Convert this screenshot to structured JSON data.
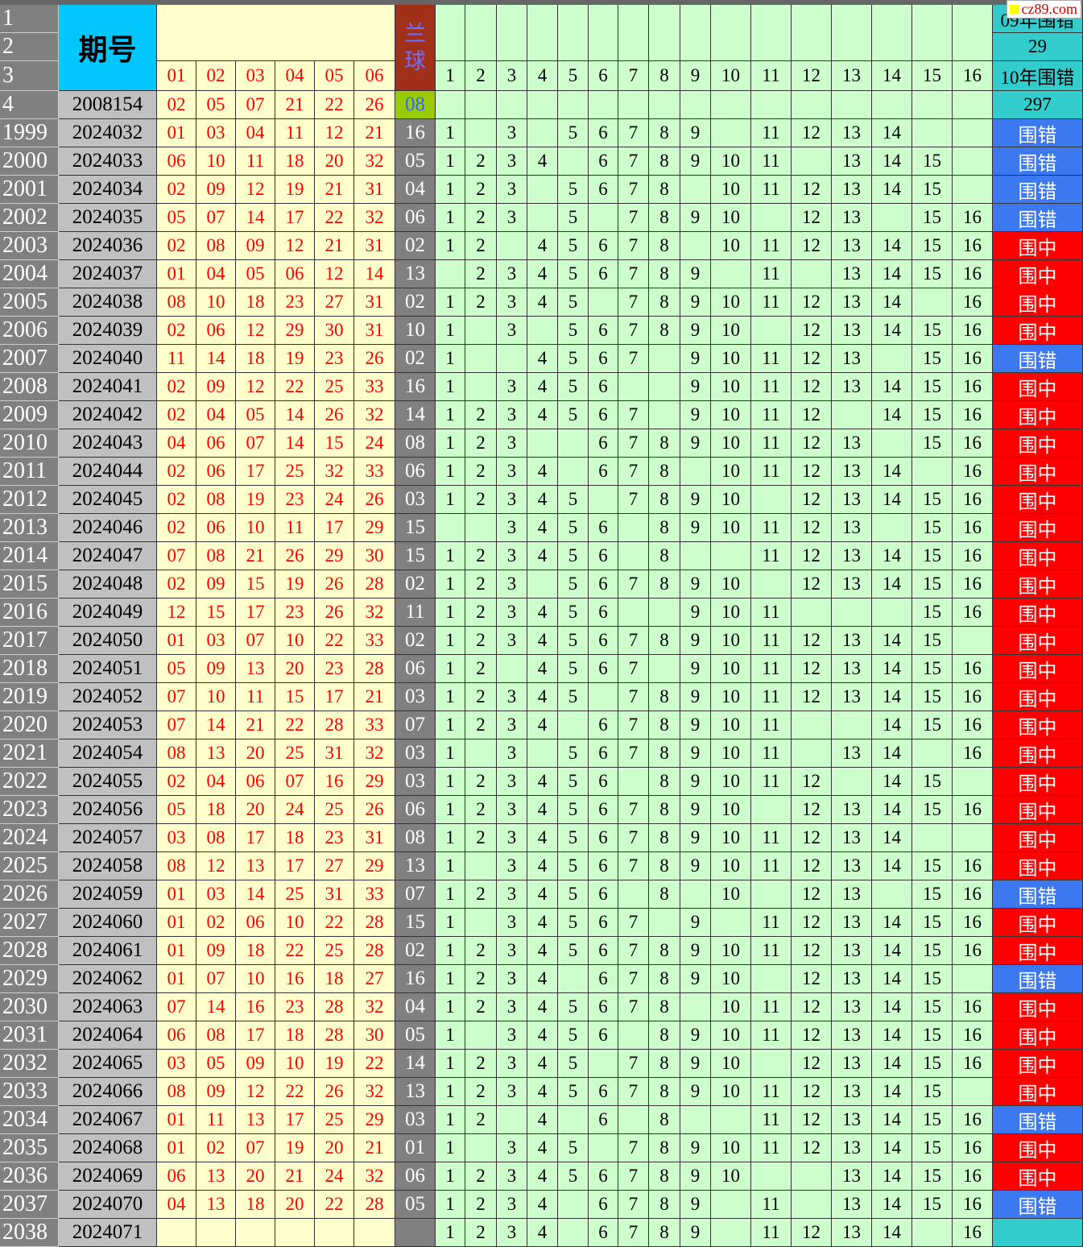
{
  "header": {
    "row_numbers": [
      "1",
      "2",
      "3",
      "4"
    ],
    "issue_label": "期号",
    "red_labels": [
      "01",
      "02",
      "03",
      "04",
      "05",
      "06"
    ],
    "blue_label": "兰球",
    "number_labels": [
      1,
      2,
      3,
      4,
      5,
      6,
      7,
      8,
      9,
      10,
      11,
      12,
      13,
      14,
      15,
      16
    ],
    "side": [
      "09年围错",
      "29",
      "10年围错",
      "297"
    ]
  },
  "reference": {
    "issue": "2008154",
    "reds": [
      "02",
      "05",
      "07",
      "21",
      "22",
      "26"
    ],
    "blue": "08"
  },
  "result_colors": {
    "围错": "#3c78f0",
    "围中": "#ff0000"
  },
  "watermark": "cz89.com",
  "rows": [
    {
      "row": "1999",
      "issue": "2024032",
      "reds": [
        "01",
        "03",
        "04",
        "11",
        "12",
        "21"
      ],
      "blue": "16",
      "nums": [
        1,
        null,
        3,
        null,
        5,
        6,
        7,
        8,
        9,
        null,
        11,
        12,
        13,
        14,
        null,
        null
      ],
      "result": "围错"
    },
    {
      "row": "2000",
      "issue": "2024033",
      "reds": [
        "06",
        "10",
        "11",
        "18",
        "20",
        "32"
      ],
      "blue": "05",
      "nums": [
        1,
        2,
        3,
        4,
        null,
        6,
        7,
        8,
        9,
        10,
        11,
        null,
        13,
        14,
        15,
        null
      ],
      "result": "围错"
    },
    {
      "row": "2001",
      "issue": "2024034",
      "reds": [
        "02",
        "09",
        "12",
        "19",
        "21",
        "31"
      ],
      "blue": "04",
      "nums": [
        1,
        2,
        3,
        null,
        5,
        6,
        7,
        8,
        null,
        10,
        11,
        12,
        13,
        14,
        15,
        null
      ],
      "result": "围错"
    },
    {
      "row": "2002",
      "issue": "2024035",
      "reds": [
        "05",
        "07",
        "14",
        "17",
        "22",
        "32"
      ],
      "blue": "06",
      "nums": [
        1,
        2,
        3,
        null,
        5,
        null,
        7,
        8,
        9,
        10,
        null,
        12,
        13,
        null,
        15,
        16
      ],
      "result": "围错"
    },
    {
      "row": "2003",
      "issue": "2024036",
      "reds": [
        "02",
        "08",
        "09",
        "12",
        "21",
        "31"
      ],
      "blue": "02",
      "nums": [
        1,
        2,
        null,
        4,
        5,
        6,
        7,
        8,
        null,
        10,
        11,
        12,
        13,
        14,
        15,
        16
      ],
      "result": "围中"
    },
    {
      "row": "2004",
      "issue": "2024037",
      "reds": [
        "01",
        "04",
        "05",
        "06",
        "12",
        "14"
      ],
      "blue": "13",
      "nums": [
        null,
        2,
        3,
        4,
        5,
        6,
        7,
        8,
        9,
        null,
        11,
        null,
        13,
        14,
        15,
        16
      ],
      "result": "围中"
    },
    {
      "row": "2005",
      "issue": "2024038",
      "reds": [
        "08",
        "10",
        "18",
        "23",
        "27",
        "31"
      ],
      "blue": "02",
      "nums": [
        1,
        2,
        3,
        4,
        5,
        null,
        7,
        8,
        9,
        10,
        11,
        12,
        13,
        14,
        null,
        16
      ],
      "result": "围中"
    },
    {
      "row": "2006",
      "issue": "2024039",
      "reds": [
        "02",
        "06",
        "12",
        "29",
        "30",
        "31"
      ],
      "blue": "10",
      "nums": [
        1,
        null,
        3,
        null,
        5,
        6,
        7,
        8,
        9,
        10,
        null,
        12,
        13,
        14,
        15,
        16
      ],
      "result": "围中"
    },
    {
      "row": "2007",
      "issue": "2024040",
      "reds": [
        "11",
        "14",
        "18",
        "19",
        "23",
        "26"
      ],
      "blue": "02",
      "nums": [
        1,
        null,
        null,
        4,
        5,
        6,
        7,
        null,
        9,
        10,
        11,
        12,
        13,
        null,
        15,
        16
      ],
      "result": "围错"
    },
    {
      "row": "2008",
      "issue": "2024041",
      "reds": [
        "02",
        "09",
        "12",
        "22",
        "25",
        "33"
      ],
      "blue": "16",
      "nums": [
        1,
        null,
        3,
        4,
        5,
        6,
        null,
        null,
        9,
        10,
        11,
        12,
        13,
        14,
        15,
        16
      ],
      "result": "围中"
    },
    {
      "row": "2009",
      "issue": "2024042",
      "reds": [
        "02",
        "04",
        "05",
        "14",
        "26",
        "32"
      ],
      "blue": "14",
      "nums": [
        1,
        2,
        3,
        4,
        5,
        6,
        7,
        null,
        9,
        10,
        11,
        12,
        null,
        14,
        15,
        16
      ],
      "result": "围中"
    },
    {
      "row": "2010",
      "issue": "2024043",
      "reds": [
        "04",
        "06",
        "07",
        "14",
        "15",
        "24"
      ],
      "blue": "08",
      "nums": [
        1,
        2,
        3,
        null,
        null,
        6,
        7,
        8,
        9,
        10,
        11,
        12,
        13,
        null,
        15,
        16
      ],
      "result": "围中"
    },
    {
      "row": "2011",
      "issue": "2024044",
      "reds": [
        "02",
        "06",
        "17",
        "25",
        "32",
        "33"
      ],
      "blue": "06",
      "nums": [
        1,
        2,
        3,
        4,
        null,
        6,
        7,
        8,
        null,
        10,
        11,
        12,
        13,
        14,
        null,
        16
      ],
      "result": "围中"
    },
    {
      "row": "2012",
      "issue": "2024045",
      "reds": [
        "02",
        "08",
        "19",
        "23",
        "24",
        "26"
      ],
      "blue": "03",
      "nums": [
        1,
        2,
        3,
        4,
        5,
        null,
        7,
        8,
        9,
        10,
        null,
        12,
        13,
        14,
        15,
        16
      ],
      "result": "围中"
    },
    {
      "row": "2013",
      "issue": "2024046",
      "reds": [
        "02",
        "06",
        "10",
        "11",
        "17",
        "29"
      ],
      "blue": "15",
      "nums": [
        null,
        null,
        3,
        4,
        5,
        6,
        null,
        8,
        9,
        10,
        11,
        12,
        13,
        null,
        15,
        16
      ],
      "result": "围中"
    },
    {
      "row": "2014",
      "issue": "2024047",
      "reds": [
        "07",
        "08",
        "21",
        "26",
        "29",
        "30"
      ],
      "blue": "15",
      "nums": [
        1,
        2,
        3,
        4,
        5,
        6,
        null,
        8,
        null,
        null,
        11,
        12,
        13,
        14,
        15,
        16
      ],
      "result": "围中"
    },
    {
      "row": "2015",
      "issue": "2024048",
      "reds": [
        "02",
        "09",
        "15",
        "19",
        "26",
        "28"
      ],
      "blue": "02",
      "nums": [
        1,
        2,
        3,
        null,
        5,
        6,
        7,
        8,
        9,
        10,
        null,
        12,
        13,
        14,
        15,
        16
      ],
      "result": "围中"
    },
    {
      "row": "2016",
      "issue": "2024049",
      "reds": [
        "12",
        "15",
        "17",
        "23",
        "26",
        "32"
      ],
      "blue": "11",
      "nums": [
        1,
        2,
        3,
        4,
        5,
        6,
        null,
        null,
        9,
        10,
        11,
        null,
        null,
        null,
        15,
        16
      ],
      "result": "围中"
    },
    {
      "row": "2017",
      "issue": "2024050",
      "reds": [
        "01",
        "03",
        "07",
        "10",
        "22",
        "33"
      ],
      "blue": "02",
      "nums": [
        1,
        2,
        3,
        4,
        5,
        6,
        7,
        8,
        9,
        10,
        11,
        12,
        13,
        14,
        15,
        null
      ],
      "result": "围中"
    },
    {
      "row": "2018",
      "issue": "2024051",
      "reds": [
        "05",
        "09",
        "13",
        "20",
        "23",
        "28"
      ],
      "blue": "06",
      "nums": [
        1,
        2,
        null,
        4,
        5,
        6,
        7,
        null,
        9,
        10,
        11,
        12,
        13,
        14,
        15,
        16
      ],
      "result": "围中"
    },
    {
      "row": "2019",
      "issue": "2024052",
      "reds": [
        "07",
        "10",
        "11",
        "15",
        "17",
        "21"
      ],
      "blue": "03",
      "nums": [
        1,
        2,
        3,
        4,
        5,
        null,
        7,
        8,
        9,
        10,
        11,
        12,
        13,
        14,
        15,
        16
      ],
      "result": "围中"
    },
    {
      "row": "2020",
      "issue": "2024053",
      "reds": [
        "07",
        "14",
        "21",
        "22",
        "28",
        "33"
      ],
      "blue": "07",
      "nums": [
        1,
        2,
        3,
        4,
        null,
        6,
        7,
        8,
        9,
        10,
        11,
        null,
        null,
        14,
        15,
        16
      ],
      "result": "围中"
    },
    {
      "row": "2021",
      "issue": "2024054",
      "reds": [
        "08",
        "13",
        "20",
        "25",
        "31",
        "32"
      ],
      "blue": "03",
      "nums": [
        1,
        null,
        3,
        null,
        5,
        6,
        7,
        8,
        9,
        10,
        11,
        null,
        13,
        14,
        null,
        16
      ],
      "result": "围中"
    },
    {
      "row": "2022",
      "issue": "2024055",
      "reds": [
        "02",
        "04",
        "06",
        "07",
        "16",
        "29"
      ],
      "blue": "03",
      "nums": [
        1,
        2,
        3,
        4,
        5,
        6,
        null,
        8,
        9,
        10,
        11,
        12,
        null,
        14,
        15,
        null
      ],
      "result": "围中"
    },
    {
      "row": "2023",
      "issue": "2024056",
      "reds": [
        "05",
        "18",
        "20",
        "24",
        "25",
        "26"
      ],
      "blue": "06",
      "nums": [
        1,
        2,
        3,
        4,
        5,
        6,
        7,
        8,
        9,
        10,
        null,
        12,
        13,
        14,
        15,
        16
      ],
      "result": "围中"
    },
    {
      "row": "2024",
      "issue": "2024057",
      "reds": [
        "03",
        "08",
        "17",
        "18",
        "23",
        "31"
      ],
      "blue": "08",
      "nums": [
        1,
        2,
        3,
        4,
        5,
        6,
        7,
        8,
        9,
        10,
        11,
        12,
        13,
        14,
        null,
        null
      ],
      "result": "围中"
    },
    {
      "row": "2025",
      "issue": "2024058",
      "reds": [
        "08",
        "12",
        "13",
        "17",
        "27",
        "29"
      ],
      "blue": "13",
      "nums": [
        1,
        null,
        3,
        4,
        5,
        6,
        7,
        8,
        9,
        10,
        11,
        12,
        13,
        14,
        15,
        16
      ],
      "result": "围中"
    },
    {
      "row": "2026",
      "issue": "2024059",
      "reds": [
        "01",
        "03",
        "14",
        "25",
        "31",
        "33"
      ],
      "blue": "07",
      "nums": [
        1,
        2,
        3,
        4,
        5,
        6,
        null,
        8,
        null,
        10,
        null,
        12,
        13,
        null,
        15,
        16
      ],
      "result": "围错"
    },
    {
      "row": "2027",
      "issue": "2024060",
      "reds": [
        "01",
        "02",
        "06",
        "10",
        "22",
        "28"
      ],
      "blue": "15",
      "nums": [
        1,
        null,
        3,
        4,
        5,
        6,
        7,
        null,
        9,
        null,
        11,
        12,
        13,
        14,
        15,
        16
      ],
      "result": "围中"
    },
    {
      "row": "2028",
      "issue": "2024061",
      "reds": [
        "01",
        "09",
        "18",
        "22",
        "25",
        "28"
      ],
      "blue": "02",
      "nums": [
        1,
        2,
        3,
        4,
        5,
        6,
        7,
        8,
        9,
        10,
        11,
        12,
        13,
        14,
        15,
        16
      ],
      "result": "围中"
    },
    {
      "row": "2029",
      "issue": "2024062",
      "reds": [
        "01",
        "07",
        "10",
        "16",
        "18",
        "27"
      ],
      "blue": "16",
      "nums": [
        1,
        2,
        3,
        4,
        null,
        6,
        7,
        8,
        9,
        10,
        null,
        12,
        13,
        14,
        15,
        null
      ],
      "result": "围错"
    },
    {
      "row": "2030",
      "issue": "2024063",
      "reds": [
        "07",
        "14",
        "16",
        "23",
        "28",
        "32"
      ],
      "blue": "04",
      "nums": [
        1,
        2,
        3,
        4,
        5,
        6,
        7,
        8,
        null,
        10,
        11,
        12,
        13,
        14,
        15,
        16
      ],
      "result": "围中"
    },
    {
      "row": "2031",
      "issue": "2024064",
      "reds": [
        "06",
        "08",
        "17",
        "18",
        "28",
        "30"
      ],
      "blue": "05",
      "nums": [
        1,
        null,
        3,
        4,
        5,
        6,
        null,
        8,
        9,
        10,
        11,
        12,
        13,
        14,
        15,
        16
      ],
      "result": "围中"
    },
    {
      "row": "2032",
      "issue": "2024065",
      "reds": [
        "03",
        "05",
        "09",
        "10",
        "19",
        "22"
      ],
      "blue": "14",
      "nums": [
        1,
        2,
        3,
        4,
        5,
        null,
        7,
        8,
        9,
        10,
        null,
        12,
        13,
        14,
        15,
        16
      ],
      "result": "围中"
    },
    {
      "row": "2033",
      "issue": "2024066",
      "reds": [
        "08",
        "09",
        "12",
        "22",
        "26",
        "32"
      ],
      "blue": "13",
      "nums": [
        1,
        2,
        3,
        4,
        5,
        6,
        7,
        8,
        9,
        10,
        11,
        12,
        13,
        14,
        15,
        null
      ],
      "result": "围中"
    },
    {
      "row": "2034",
      "issue": "2024067",
      "reds": [
        "01",
        "11",
        "13",
        "17",
        "25",
        "29"
      ],
      "blue": "03",
      "nums": [
        1,
        2,
        null,
        4,
        null,
        6,
        null,
        8,
        null,
        null,
        11,
        12,
        13,
        14,
        15,
        16
      ],
      "result": "围错"
    },
    {
      "row": "2035",
      "issue": "2024068",
      "reds": [
        "01",
        "02",
        "07",
        "19",
        "20",
        "21"
      ],
      "blue": "01",
      "nums": [
        1,
        null,
        3,
        4,
        5,
        null,
        7,
        8,
        9,
        10,
        11,
        12,
        13,
        14,
        15,
        16
      ],
      "result": "围中"
    },
    {
      "row": "2036",
      "issue": "2024069",
      "reds": [
        "06",
        "13",
        "20",
        "21",
        "24",
        "32"
      ],
      "blue": "06",
      "nums": [
        1,
        2,
        3,
        4,
        5,
        6,
        7,
        8,
        9,
        10,
        null,
        null,
        13,
        14,
        15,
        16
      ],
      "result": "围中"
    },
    {
      "row": "2037",
      "issue": "2024070",
      "reds": [
        "04",
        "13",
        "18",
        "20",
        "22",
        "28"
      ],
      "blue": "05",
      "nums": [
        1,
        2,
        3,
        4,
        null,
        6,
        7,
        8,
        9,
        null,
        11,
        null,
        13,
        14,
        15,
        16
      ],
      "result": "围错"
    },
    {
      "row": "2038",
      "issue": "2024071",
      "reds": [
        null,
        null,
        null,
        null,
        null,
        null
      ],
      "blue": null,
      "nums": [
        1,
        2,
        3,
        4,
        null,
        6,
        7,
        8,
        9,
        null,
        11,
        12,
        13,
        14,
        null,
        16
      ],
      "result": null
    }
  ]
}
